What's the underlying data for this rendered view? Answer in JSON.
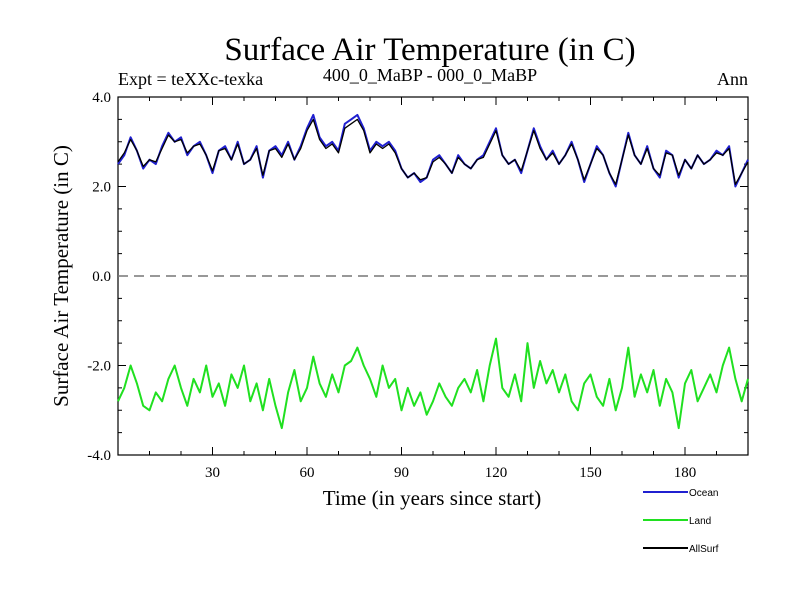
{
  "chart_data": {
    "type": "line",
    "title": "Surface Air Temperature (in C)",
    "subtitle_left": "Expt = teXXc-texka",
    "subtitle_center": "400_0_MaBP - 000_0_MaBP",
    "subtitle_right": "Ann",
    "xlabel": "Time (in years since start)",
    "ylabel": "Surface Air Temperature (in C)",
    "xlim": [
      0,
      200
    ],
    "ylim": [
      -4.0,
      4.0
    ],
    "xticks": [
      30,
      60,
      90,
      120,
      150,
      180
    ],
    "xtick_labels": [
      "30",
      "60",
      "90",
      "120",
      "150",
      "180"
    ],
    "yticks": [
      -4.0,
      -2.0,
      0.0,
      2.0,
      4.0
    ],
    "ytick_labels": [
      "-4.0",
      "-2.0",
      "0.0",
      "2.0",
      "4.0"
    ],
    "reference_line": {
      "y": 0.0,
      "style": "dashed"
    },
    "x": [
      0,
      2,
      4,
      6,
      8,
      10,
      12,
      14,
      16,
      18,
      20,
      22,
      24,
      26,
      28,
      30,
      32,
      34,
      36,
      38,
      40,
      42,
      44,
      46,
      48,
      50,
      52,
      54,
      56,
      58,
      60,
      62,
      64,
      66,
      68,
      70,
      72,
      74,
      76,
      78,
      80,
      82,
      84,
      86,
      88,
      90,
      92,
      94,
      96,
      98,
      100,
      102,
      104,
      106,
      108,
      110,
      112,
      114,
      116,
      118,
      120,
      122,
      124,
      126,
      128,
      130,
      132,
      134,
      136,
      138,
      140,
      142,
      144,
      146,
      148,
      150,
      152,
      154,
      156,
      158,
      160,
      162,
      164,
      166,
      168,
      170,
      172,
      174,
      176,
      178,
      180,
      182,
      184,
      186,
      188,
      190,
      192,
      194,
      196,
      198,
      200
    ],
    "series": [
      {
        "name": "Ocean",
        "color": "#2020d0",
        "values": [
          2.5,
          2.7,
          3.1,
          2.8,
          2.4,
          2.6,
          2.5,
          2.9,
          3.2,
          3.0,
          3.1,
          2.7,
          2.9,
          3.0,
          2.7,
          2.3,
          2.8,
          2.9,
          2.6,
          3.0,
          2.5,
          2.6,
          2.9,
          2.2,
          2.8,
          2.9,
          2.7,
          3.0,
          2.6,
          2.9,
          3.3,
          3.6,
          3.1,
          2.9,
          3.0,
          2.8,
          3.4,
          3.5,
          3.6,
          3.3,
          2.8,
          3.0,
          2.9,
          3.0,
          2.8,
          2.4,
          2.2,
          2.3,
          2.1,
          2.2,
          2.6,
          2.7,
          2.5,
          2.3,
          2.7,
          2.5,
          2.4,
          2.6,
          2.7,
          3.0,
          3.3,
          2.7,
          2.5,
          2.6,
          2.3,
          2.8,
          3.3,
          2.9,
          2.6,
          2.8,
          2.5,
          2.7,
          3.0,
          2.6,
          2.1,
          2.5,
          2.9,
          2.7,
          2.3,
          2.0,
          2.6,
          3.2,
          2.7,
          2.5,
          2.9,
          2.4,
          2.2,
          2.8,
          2.7,
          2.2,
          2.6,
          2.4,
          2.7,
          2.5,
          2.6,
          2.8,
          2.7,
          2.9,
          2.0,
          2.3,
          2.6
        ]
      },
      {
        "name": "Land",
        "color": "#20e020",
        "values": [
          -2.8,
          -2.5,
          -2.0,
          -2.4,
          -2.9,
          -3.0,
          -2.6,
          -2.8,
          -2.3,
          -2.0,
          -2.5,
          -2.9,
          -2.3,
          -2.6,
          -2.0,
          -2.7,
          -2.4,
          -2.9,
          -2.2,
          -2.5,
          -2.0,
          -2.8,
          -2.4,
          -3.0,
          -2.3,
          -2.9,
          -3.4,
          -2.6,
          -2.1,
          -2.8,
          -2.5,
          -1.8,
          -2.4,
          -2.7,
          -2.2,
          -2.6,
          -2.0,
          -1.9,
          -1.6,
          -2.0,
          -2.3,
          -2.7,
          -2.0,
          -2.5,
          -2.3,
          -3.0,
          -2.5,
          -2.9,
          -2.6,
          -3.1,
          -2.8,
          -2.4,
          -2.7,
          -2.9,
          -2.5,
          -2.3,
          -2.6,
          -2.1,
          -2.8,
          -2.0,
          -1.4,
          -2.5,
          -2.7,
          -2.2,
          -2.8,
          -1.5,
          -2.5,
          -1.9,
          -2.4,
          -2.1,
          -2.6,
          -2.2,
          -2.8,
          -3.0,
          -2.4,
          -2.2,
          -2.7,
          -2.9,
          -2.3,
          -3.0,
          -2.5,
          -1.6,
          -2.7,
          -2.2,
          -2.6,
          -2.1,
          -2.9,
          -2.3,
          -2.6,
          -3.4,
          -2.4,
          -2.1,
          -2.8,
          -2.5,
          -2.2,
          -2.6,
          -2.0,
          -1.6,
          -2.3,
          -2.8,
          -2.3
        ]
      },
      {
        "name": "AllSurf",
        "color": "#000000",
        "values": [
          2.55,
          2.75,
          3.05,
          2.8,
          2.45,
          2.6,
          2.55,
          2.85,
          3.15,
          3.0,
          3.05,
          2.75,
          2.9,
          2.95,
          2.7,
          2.35,
          2.8,
          2.85,
          2.6,
          2.95,
          2.5,
          2.6,
          2.85,
          2.25,
          2.8,
          2.85,
          2.65,
          2.95,
          2.6,
          2.85,
          3.25,
          3.5,
          3.05,
          2.85,
          2.95,
          2.75,
          3.3,
          3.4,
          3.5,
          3.25,
          2.75,
          2.95,
          2.85,
          2.95,
          2.75,
          2.4,
          2.2,
          2.3,
          2.15,
          2.2,
          2.55,
          2.65,
          2.5,
          2.3,
          2.65,
          2.5,
          2.4,
          2.6,
          2.65,
          2.95,
          3.25,
          2.7,
          2.5,
          2.6,
          2.35,
          2.8,
          3.25,
          2.85,
          2.6,
          2.75,
          2.5,
          2.7,
          2.95,
          2.6,
          2.15,
          2.5,
          2.85,
          2.7,
          2.3,
          2.05,
          2.6,
          3.15,
          2.7,
          2.5,
          2.85,
          2.4,
          2.25,
          2.75,
          2.7,
          2.25,
          2.6,
          2.4,
          2.7,
          2.5,
          2.6,
          2.75,
          2.7,
          2.85,
          2.05,
          2.3,
          2.55
        ]
      }
    ],
    "legend": {
      "position": "bottom-right",
      "entries": [
        "Ocean",
        "Land",
        "AllSurf"
      ]
    }
  }
}
